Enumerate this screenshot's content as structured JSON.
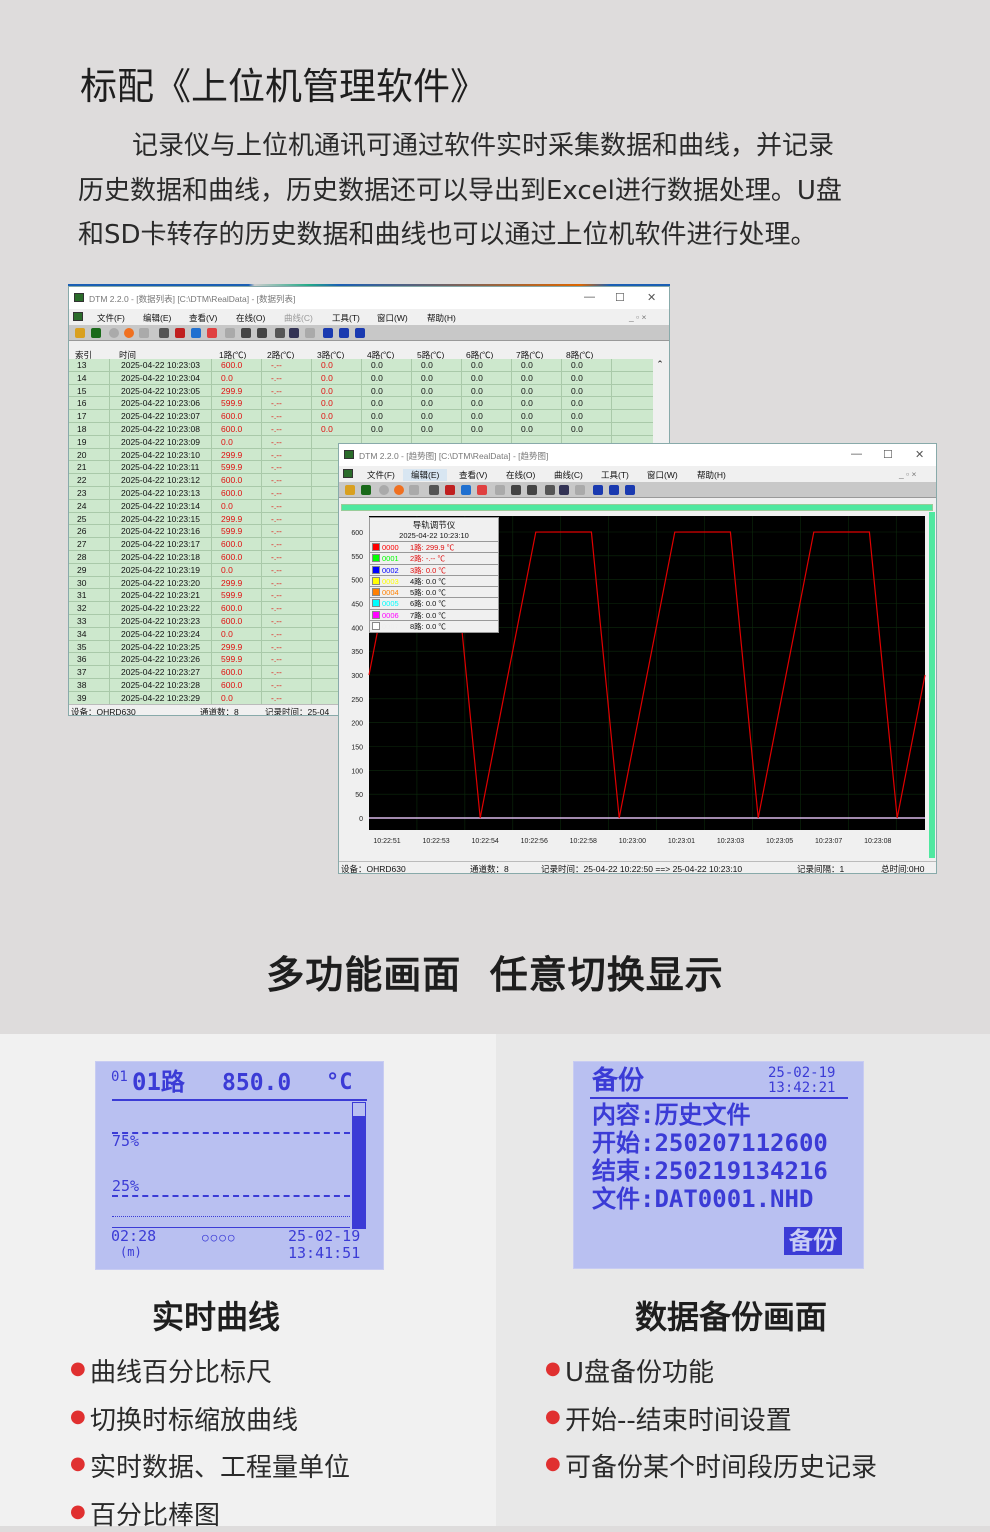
{
  "heading": "标配《上位机管理软件》",
  "intro": [
    "记录仪与上位机通讯可通过软件实时采集数据和曲线，并记录",
    "历史数据和曲线，历史数据还可以导出到Excel进行数据处理。U盘",
    "和SD卡转存的历史数据和曲线也可以通过上位机软件进行处理。"
  ],
  "menu": [
    "文件(F)",
    "编辑(E)",
    "查看(V)",
    "在线(O)",
    "曲线(C)",
    "工具(T)",
    "窗口(W)",
    "帮助(H)"
  ],
  "table_window": {
    "title": "DTM 2.2.0 - [数据列表] [C:\\DTM\\RealData] - [数据列表]",
    "columns": [
      "索引",
      "时间",
      "1路(℃)",
      "2路(℃)",
      "3路(℃)",
      "4路(℃)",
      "5路(℃)",
      "6路(℃)",
      "7路(℃)",
      "8路(℃)"
    ],
    "rows": [
      [
        "13",
        "2025-04-22 10:23:03",
        "600.0"
      ],
      [
        "14",
        "2025-04-22 10:23:04",
        "0.0"
      ],
      [
        "15",
        "2025-04-22 10:23:05",
        "299.9"
      ],
      [
        "16",
        "2025-04-22 10:23:06",
        "599.9"
      ],
      [
        "17",
        "2025-04-22 10:23:07",
        "600.0"
      ],
      [
        "18",
        "2025-04-22 10:23:08",
        "600.0"
      ],
      [
        "19",
        "2025-04-22 10:23:09",
        "0.0"
      ],
      [
        "20",
        "2025-04-22 10:23:10",
        "299.9"
      ],
      [
        "21",
        "2025-04-22 10:23:11",
        "599.9"
      ],
      [
        "22",
        "2025-04-22 10:23:12",
        "600.0"
      ],
      [
        "23",
        "2025-04-22 10:23:13",
        "600.0"
      ],
      [
        "24",
        "2025-04-22 10:23:14",
        "0.0"
      ],
      [
        "25",
        "2025-04-22 10:23:15",
        "299.9"
      ],
      [
        "26",
        "2025-04-22 10:23:16",
        "599.9"
      ],
      [
        "27",
        "2025-04-22 10:23:17",
        "600.0"
      ],
      [
        "28",
        "2025-04-22 10:23:18",
        "600.0"
      ],
      [
        "29",
        "2025-04-22 10:23:19",
        "0.0"
      ],
      [
        "30",
        "2025-04-22 10:23:20",
        "299.9"
      ],
      [
        "31",
        "2025-04-22 10:23:21",
        "599.9"
      ],
      [
        "32",
        "2025-04-22 10:23:22",
        "600.0"
      ],
      [
        "33",
        "2025-04-22 10:23:23",
        "600.0"
      ],
      [
        "34",
        "2025-04-22 10:23:24",
        "0.0"
      ],
      [
        "35",
        "2025-04-22 10:23:25",
        "299.9"
      ],
      [
        "36",
        "2025-04-22 10:23:26",
        "599.9"
      ],
      [
        "37",
        "2025-04-22 10:23:27",
        "600.0"
      ],
      [
        "38",
        "2025-04-22 10:23:28",
        "600.0"
      ],
      [
        "39",
        "2025-04-22 10:23:29",
        "0.0"
      ]
    ],
    "ch2_value": "-.--",
    "other_value": "0.0",
    "status": {
      "device": "设备：OHRD630",
      "channels": "通道数：8",
      "record": "记录时间：25-04"
    }
  },
  "trend_window": {
    "title": "DTM 2.2.0 - [趋势图] [C:\\DTM\\RealData] - [趋势图]",
    "legend": {
      "title": "导轨调节仪",
      "time": "2025-04-22 10:23:10",
      "items": [
        {
          "id": "0000",
          "label": "1路: 299.9 ℃",
          "color": "#ff0000",
          "red": true
        },
        {
          "id": "0001",
          "label": "2路: -.-- ℃",
          "color": "#00ff00",
          "red": true
        },
        {
          "id": "0002",
          "label": "3路: 0.0 ℃",
          "color": "#0000ff",
          "red": true
        },
        {
          "id": "0003",
          "label": "4路: 0.0 ℃",
          "color": "#ffff00"
        },
        {
          "id": "0004",
          "label": "5路: 0.0 ℃",
          "color": "#ff8000"
        },
        {
          "id": "0005",
          "label": "6路: 0.0 ℃",
          "color": "#00ffff"
        },
        {
          "id": "0006",
          "label": "7路: 0.0 ℃",
          "color": "#ff00ff"
        },
        {
          "id": "0007",
          "label": "8路: 0.0 ℃",
          "color": "#ffffff"
        }
      ]
    },
    "status": {
      "device": "设备：OHRD630",
      "channels": "通道数：8",
      "record": "记录时间：25-04-22 10:22:50 ==> 25-04-22 10:23:10",
      "interval": "记录间隔：1",
      "total": "总时间:0H0"
    }
  },
  "chart_data": {
    "type": "line",
    "x_start": "10:22:50",
    "x_end": "10:23:10",
    "x": [
      "10:22:50",
      "10:22:51",
      "10:22:52",
      "10:22:53",
      "10:22:54",
      "10:22:55",
      "10:22:56",
      "10:22:57",
      "10:22:58",
      "10:22:59",
      "10:23:00",
      "10:23:01",
      "10:23:02",
      "10:23:03",
      "10:23:04",
      "10:23:05",
      "10:23:06",
      "10:23:07",
      "10:23:08",
      "10:23:09",
      "10:23:10"
    ],
    "series": [
      {
        "name": "1路",
        "color": "#e00000",
        "values": [
          299.9,
          599.9,
          600,
          600,
          0,
          299.9,
          599.9,
          600,
          600,
          0,
          299.9,
          599.9,
          600,
          600,
          0,
          299.9,
          599.9,
          600,
          600,
          0,
          299.9
        ]
      }
    ],
    "xticks": [
      "10:22:51",
      "10:22:53",
      "10:22:54",
      "10:22:56",
      "10:22:58",
      "10:23:00",
      "10:23:01",
      "10:23:03",
      "10:23:05",
      "10:23:07",
      "10:23:08"
    ],
    "yticks": [
      0,
      50,
      100,
      150,
      200,
      250,
      300,
      350,
      400,
      450,
      500,
      550,
      600
    ],
    "ylim": [
      0,
      600
    ],
    "grid": true,
    "legend": "top-left",
    "background": "#000000"
  },
  "section2": "多功能画面  任意切换显示",
  "lcd_left": {
    "ch_small": "01",
    "channel": "01路",
    "value": "850.0",
    "unit": "°C",
    "p75": "75%",
    "p25": "25%",
    "span": "02:28",
    "span_unit": "(m)",
    "dots": "○○○○",
    "date": "25-02-19",
    "time": "13:41:51",
    "bar_fill": 0.9
  },
  "lcd_right": {
    "title": "备份",
    "date": "25-02-19",
    "time": "13:42:21",
    "lines": [
      "内容:历史文件",
      "开始:250207112600",
      "结束:250219134216",
      "文件:DAT0001.NHD"
    ],
    "button": "备份"
  },
  "left_caption": "实时曲线",
  "left_bullets": [
    "曲线百分比标尺",
    "切换时标缩放曲线",
    "实时数据、工程量单位",
    "百分比棒图"
  ],
  "right_caption": "数据备份画面",
  "right_bullets": [
    "U盘备份功能",
    "开始--结束时间设置",
    "可备份某个时间段历史记录"
  ],
  "colors": {
    "lcd_bg": "#b9c0f1",
    "lcd_text": "#3b3bd6",
    "table_row": "#cde8cd",
    "trend_line": "#e00000",
    "bullet": "#e03030"
  }
}
